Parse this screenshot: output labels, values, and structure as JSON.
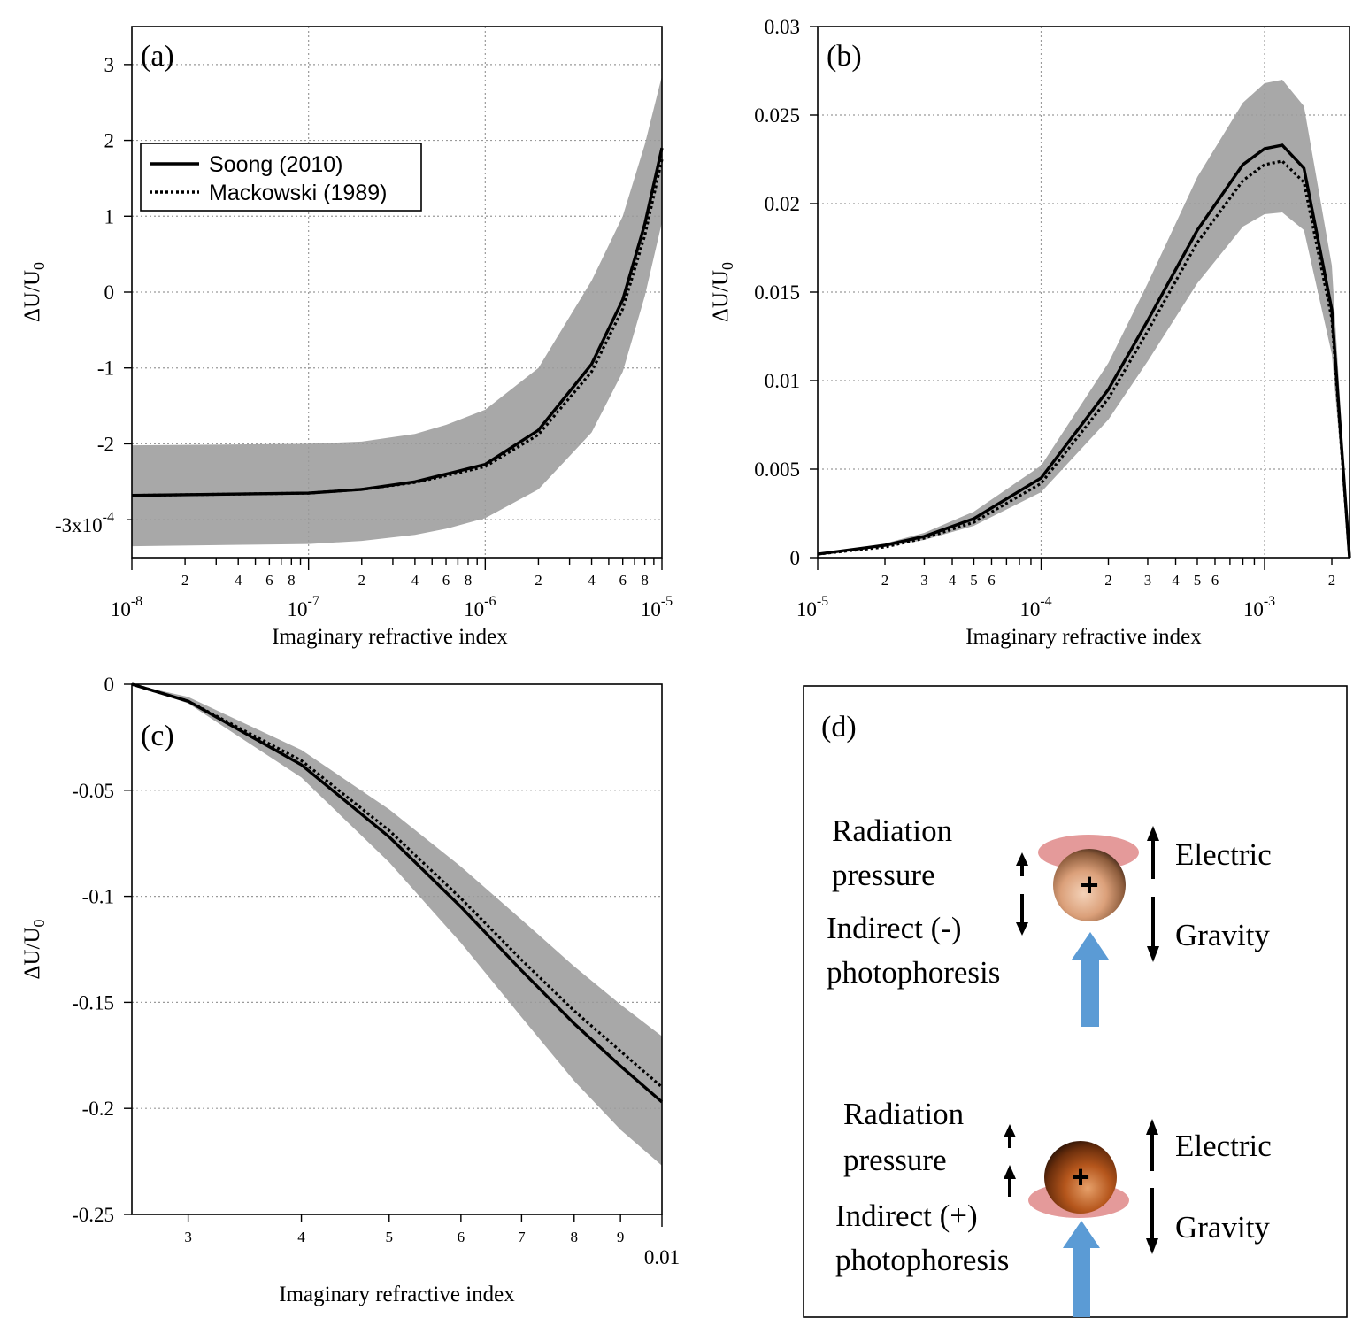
{
  "chart_data": [
    {
      "panel": "(a)",
      "type": "line",
      "xlabel": "Imaginary refractive index",
      "ylabel": "ΔU/U",
      "ylabel_sub": "0",
      "xscale": "log",
      "xlim": [
        1e-08,
        1e-05
      ],
      "ylim": [
        -3.5,
        3.5
      ],
      "y_multiplier_label": "-3x10",
      "y_multiplier_exp": "-4",
      "x_major_ticks": [
        {
          "base": "10",
          "exp": "-8"
        },
        {
          "base": "10",
          "exp": "-7"
        },
        {
          "base": "10",
          "exp": "-6"
        },
        {
          "base": "10",
          "exp": "-5"
        }
      ],
      "x_minor_labels": [
        "2",
        "4",
        "6",
        "8"
      ],
      "y_ticks": [
        "3",
        "2",
        "1",
        "0",
        "-1",
        "-2"
      ],
      "legend": {
        "position": "upper-left",
        "entries": [
          {
            "name": "Soong (2010)",
            "style": "solid"
          },
          {
            "name": "Mackowski (1989)",
            "style": "dotted"
          }
        ]
      },
      "grid": true,
      "series": [
        {
          "name": "Soong (2010)",
          "style": "solid",
          "x": [
            1e-08,
            1e-07,
            2e-07,
            4e-07,
            6e-07,
            1e-06,
            2e-06,
            4e-06,
            6e-06,
            8e-06,
            1e-05
          ],
          "y": [
            -2.68,
            -2.65,
            -2.6,
            -2.5,
            -2.4,
            -2.27,
            -1.82,
            -0.95,
            -0.1,
            0.9,
            1.9
          ]
        },
        {
          "name": "Mackowski (1989)",
          "style": "dotted",
          "x": [
            1e-08,
            1e-07,
            2e-07,
            4e-07,
            6e-07,
            1e-06,
            2e-06,
            4e-06,
            6e-06,
            8e-06,
            1e-05
          ],
          "y": [
            -2.68,
            -2.65,
            -2.6,
            -2.51,
            -2.42,
            -2.3,
            -1.88,
            -1.05,
            -0.22,
            0.75,
            1.75
          ]
        }
      ],
      "band": {
        "x": [
          1e-08,
          1e-07,
          2e-07,
          4e-07,
          6e-07,
          1e-06,
          2e-06,
          4e-06,
          6e-06,
          8e-06,
          1e-05
        ],
        "upper": [
          -2.02,
          -2.0,
          -1.97,
          -1.87,
          -1.75,
          -1.55,
          -1.0,
          0.15,
          1.0,
          1.95,
          2.85
        ],
        "lower": [
          -3.35,
          -3.32,
          -3.28,
          -3.2,
          -3.12,
          -2.98,
          -2.6,
          -1.85,
          -1.05,
          -0.05,
          0.92
        ]
      }
    },
    {
      "panel": "(b)",
      "type": "line",
      "xlabel": "Imaginary refractive index",
      "ylabel": "ΔU/U",
      "ylabel_sub": "0",
      "xscale": "log",
      "xlim": [
        1e-05,
        0.0024
      ],
      "ylim": [
        0,
        0.03
      ],
      "x_major_ticks": [
        {
          "base": "10",
          "exp": "-5"
        },
        {
          "base": "10",
          "exp": "-4"
        },
        {
          "base": "10",
          "exp": "-3"
        }
      ],
      "x_minor_labels": [
        "2",
        "3",
        "4",
        "5",
        "6"
      ],
      "y_ticks": [
        "0.03",
        "0.025",
        "0.02",
        "0.015",
        "0.01",
        "0.005",
        "0"
      ],
      "grid": true,
      "series": [
        {
          "name": "Soong (2010)",
          "style": "solid",
          "x": [
            1e-05,
            2e-05,
            3e-05,
            5e-05,
            0.0001,
            0.0002,
            0.0003,
            0.0005,
            0.0008,
            0.001,
            0.0012,
            0.0015,
            0.002,
            0.0024
          ],
          "y": [
            0.0002,
            0.0007,
            0.0012,
            0.0022,
            0.0045,
            0.0095,
            0.0134,
            0.0185,
            0.0222,
            0.0231,
            0.0233,
            0.022,
            0.014,
            0.0
          ]
        },
        {
          "name": "Mackowski (1989)",
          "style": "dotted",
          "x": [
            1e-05,
            2e-05,
            3e-05,
            5e-05,
            0.0001,
            0.0002,
            0.0003,
            0.0005,
            0.0008,
            0.001,
            0.0012,
            0.0015,
            0.002,
            0.0024
          ],
          "y": [
            0.0002,
            0.0006,
            0.0011,
            0.002,
            0.0042,
            0.009,
            0.0128,
            0.0178,
            0.0213,
            0.0222,
            0.0224,
            0.0212,
            0.0135,
            0.0
          ]
        }
      ],
      "band": {
        "x": [
          1e-05,
          2e-05,
          3e-05,
          5e-05,
          0.0001,
          0.0002,
          0.0003,
          0.0005,
          0.0008,
          0.001,
          0.0012,
          0.0015,
          0.002,
          0.0024
        ],
        "upper": [
          0.0002,
          0.0008,
          0.0014,
          0.0026,
          0.0052,
          0.011,
          0.0155,
          0.0215,
          0.0257,
          0.0268,
          0.027,
          0.0255,
          0.0165,
          0.0
        ],
        "lower": [
          0.0002,
          0.0006,
          0.001,
          0.0018,
          0.0037,
          0.0078,
          0.0111,
          0.0155,
          0.0187,
          0.0194,
          0.0195,
          0.0185,
          0.0115,
          0.0
        ]
      }
    },
    {
      "panel": "(c)",
      "type": "line",
      "xlabel": "Imaginary refractive index",
      "ylabel": "ΔU/U",
      "ylabel_sub": "0",
      "xscale": "log",
      "xlim": [
        0.0026,
        0.01
      ],
      "ylim": [
        -0.25,
        0
      ],
      "x_major_ticks": [
        {
          "base": "0.01",
          "exp": ""
        }
      ],
      "x_minor_labels": [
        "3",
        "4",
        "5",
        "6",
        "7",
        "8",
        "9"
      ],
      "y_ticks": [
        "0",
        "-0.05",
        "-0.1",
        "-0.15",
        "-0.2",
        "-0.25"
      ],
      "grid": true,
      "series": [
        {
          "name": "Soong (2010)",
          "style": "solid",
          "x": [
            0.0026,
            0.003,
            0.004,
            0.005,
            0.006,
            0.007,
            0.008,
            0.009,
            0.01
          ],
          "y": [
            0.0,
            -0.008,
            -0.038,
            -0.072,
            -0.105,
            -0.135,
            -0.16,
            -0.18,
            -0.197
          ]
        },
        {
          "name": "Mackowski (1989)",
          "style": "dotted",
          "x": [
            0.0026,
            0.003,
            0.004,
            0.005,
            0.006,
            0.007,
            0.008,
            0.009,
            0.01
          ],
          "y": [
            0.0,
            -0.008,
            -0.036,
            -0.069,
            -0.101,
            -0.13,
            -0.154,
            -0.173,
            -0.19
          ]
        }
      ],
      "band": {
        "x": [
          0.0026,
          0.003,
          0.004,
          0.005,
          0.006,
          0.007,
          0.008,
          0.009,
          0.01
        ],
        "upper": [
          0.0,
          -0.006,
          -0.031,
          -0.059,
          -0.086,
          -0.111,
          -0.133,
          -0.151,
          -0.166
        ],
        "lower": [
          0.0,
          -0.009,
          -0.044,
          -0.084,
          -0.122,
          -0.157,
          -0.187,
          -0.21,
          -0.227
        ]
      }
    }
  ],
  "diagram": {
    "panel": "(d)",
    "top": {
      "radiation_label_1": "Radiation",
      "radiation_label_2": "pressure",
      "indirect_label_1": "Indirect (-)",
      "indirect_label_2": "photophoresis",
      "electric_label": "Electric",
      "gravity_label": "Gravity",
      "charge_symbol": "+",
      "particle_color": "#e0a47c",
      "hot_side": "top"
    },
    "bottom": {
      "radiation_label_1": "Radiation",
      "radiation_label_2": "pressure",
      "indirect_label_1": "Indirect (+)",
      "indirect_label_2": "photophoresis",
      "electric_label": "Electric",
      "gravity_label": "Gravity",
      "charge_symbol": "+",
      "particle_color": "#b8561e",
      "hot_side": "bottom"
    },
    "light_color": "#5b9bd5",
    "heat_color": "#e49a9a"
  }
}
